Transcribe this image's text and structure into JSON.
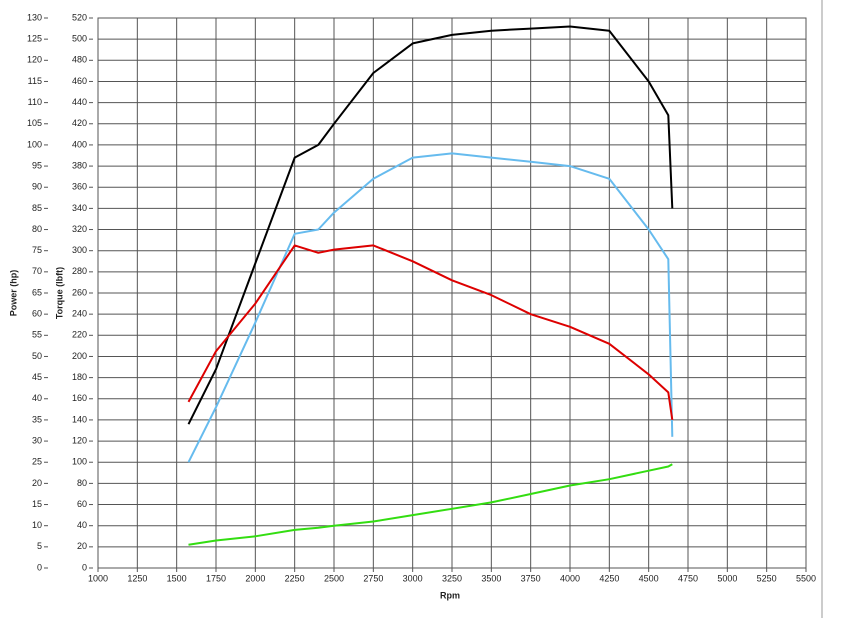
{
  "chart_data": {
    "type": "line",
    "x_label": "Rpm",
    "y_label": "Power (hp)",
    "y2_label": "Torque (lbft)",
    "y2_label_color": "#cc0000",
    "x": [
      1575,
      1750,
      2000,
      2250,
      2400,
      2500,
      2750,
      3000,
      3250,
      3500,
      3750,
      4000,
      4250,
      4500,
      4625,
      4650
    ],
    "series": [
      {
        "color": "#000000",
        "values": [
          34,
          47,
          72,
          97,
          100,
          105,
          117,
          124,
          126,
          127,
          127.5,
          128,
          127,
          115,
          107,
          85
        ]
      },
      {
        "color": "#66bbee",
        "values": [
          25,
          38,
          58,
          79,
          80,
          84,
          92,
          97,
          98,
          97,
          96,
          95,
          92,
          80,
          73,
          31
        ]
      },
      {
        "color": "#dd0000",
        "axis": "y2",
        "values": [
          157,
          205,
          250,
          305,
          298,
          301,
          305,
          290,
          272,
          258,
          240,
          228,
          212,
          183,
          166,
          140
        ]
      },
      {
        "color": "#33dd11",
        "values": [
          5.5,
          6.5,
          7.5,
          9,
          9.5,
          10,
          11,
          12.5,
          14,
          15.5,
          17.5,
          19.5,
          21,
          23,
          24,
          24.5
        ]
      }
    ],
    "xlim": [
      1000,
      5500
    ],
    "xticks": [
      1000,
      1250,
      1500,
      1750,
      2000,
      2250,
      2500,
      2750,
      3000,
      3250,
      3500,
      3750,
      4000,
      4250,
      4500,
      4750,
      5000,
      5250,
      5500
    ],
    "ylim": [
      0,
      130
    ],
    "yticks": [
      0,
      5,
      10,
      15,
      20,
      25,
      30,
      35,
      40,
      45,
      50,
      55,
      60,
      65,
      70,
      75,
      80,
      85,
      90,
      95,
      100,
      105,
      110,
      115,
      120,
      125,
      130
    ],
    "y2lim": [
      0,
      520
    ],
    "y2ticks": [
      0,
      20,
      40,
      60,
      80,
      100,
      120,
      140,
      160,
      180,
      200,
      220,
      240,
      260,
      280,
      300,
      320,
      340,
      360,
      380,
      400,
      420,
      440,
      460,
      480,
      500,
      520
    ],
    "grid": true
  }
}
